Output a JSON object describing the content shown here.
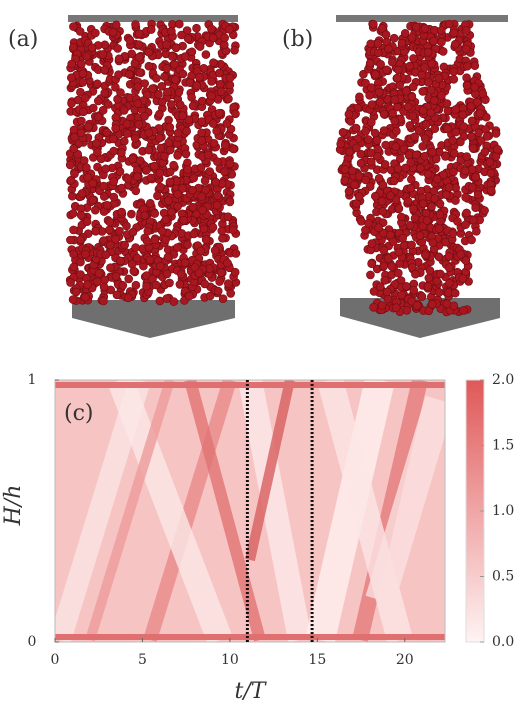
{
  "panels": {
    "a": "(a)",
    "b": "(b)"
  },
  "chart_data": {
    "type": "heatmap",
    "panel_label": "(c)",
    "xlabel": "t/T",
    "ylabel": "H/h",
    "xlim": [
      0,
      22.3
    ],
    "xticks": [
      0,
      5,
      10,
      15,
      20
    ],
    "ylim": [
      0,
      1
    ],
    "yticks": [
      0,
      1
    ],
    "markers": [
      11,
      14.7
    ],
    "colorbar": {
      "lim": [
        0,
        2
      ],
      "ticks": [
        {
          "value": 0,
          "label": "0.0"
        },
        {
          "value": 0.5,
          "label": "0.5"
        },
        {
          "value": 1,
          "label": "1.0"
        },
        1.5,
        {
          "value": 2,
          "label": "2.0"
        }
      ]
    }
  }
}
